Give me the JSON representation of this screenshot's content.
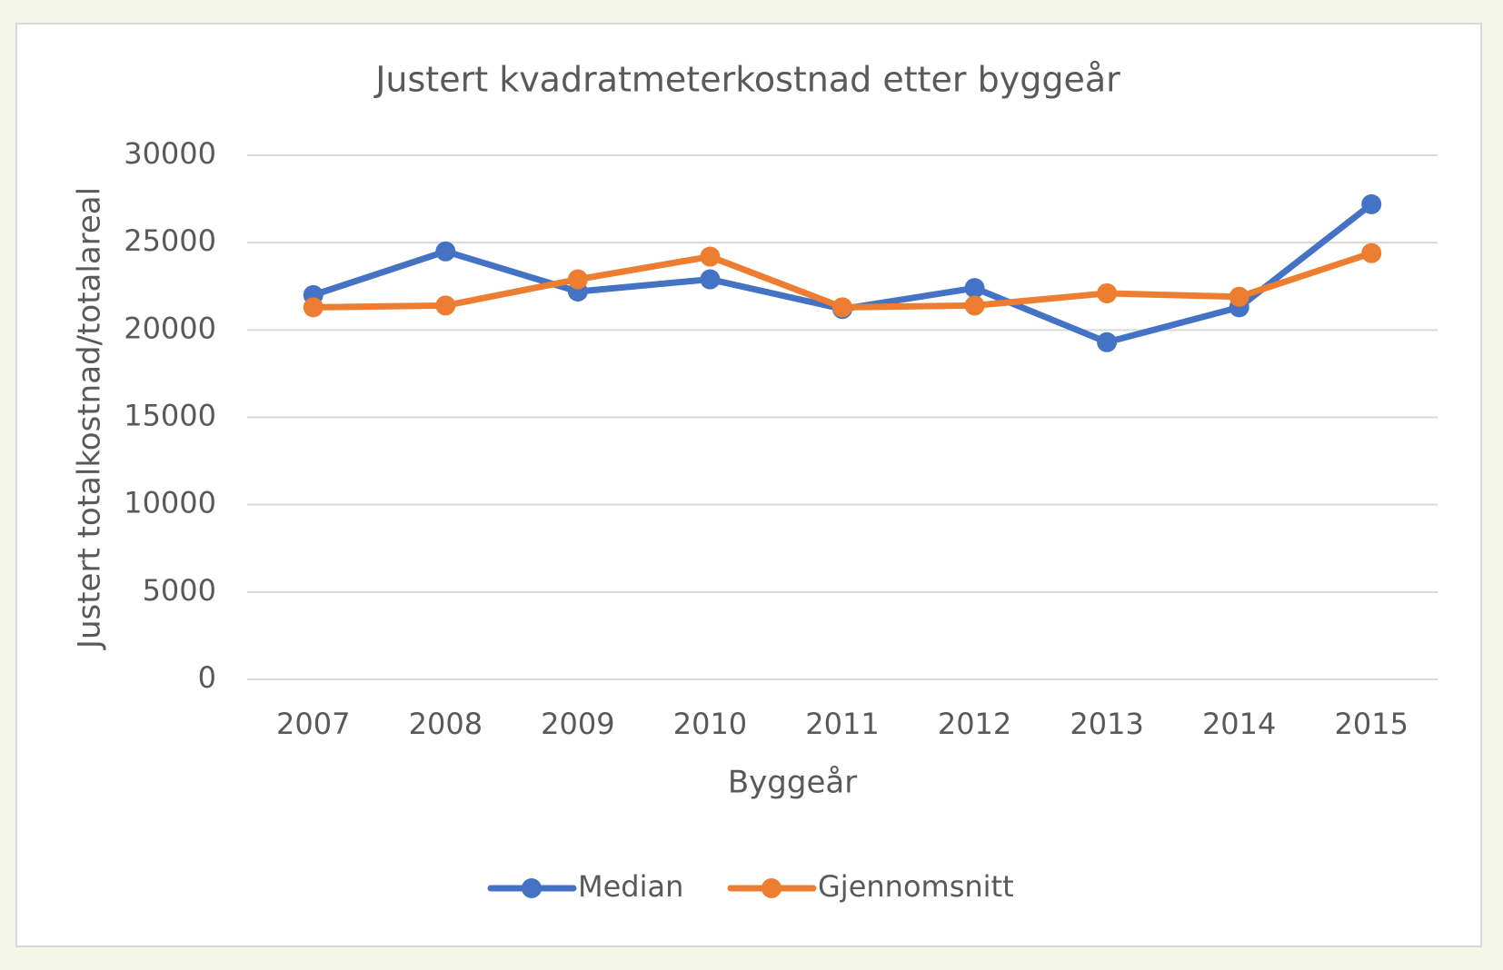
{
  "chart_data": {
    "type": "line",
    "title": "Justert kvadratmeterkostnad etter byggeår",
    "x_label": "Byggeår",
    "y_label": "Justert totalkostnad/totalareal",
    "categories": [
      "2007",
      "2008",
      "2009",
      "2010",
      "2011",
      "2012",
      "2013",
      "2014",
      "2015"
    ],
    "series": [
      {
        "name": "Median",
        "color": "#4472c4",
        "values": [
          22000,
          24500,
          22200,
          22900,
          21200,
          22400,
          19300,
          21300,
          27200
        ]
      },
      {
        "name": "Gjennomsnitt",
        "color": "#ed7d31",
        "values": [
          21300,
          21400,
          22900,
          24200,
          21300,
          21400,
          22100,
          21900,
          24400
        ]
      }
    ],
    "ylim": [
      0,
      30000
    ],
    "yticks": [
      0,
      5000,
      10000,
      15000,
      20000,
      25000,
      30000
    ],
    "grid": true,
    "legend": "bottom"
  }
}
